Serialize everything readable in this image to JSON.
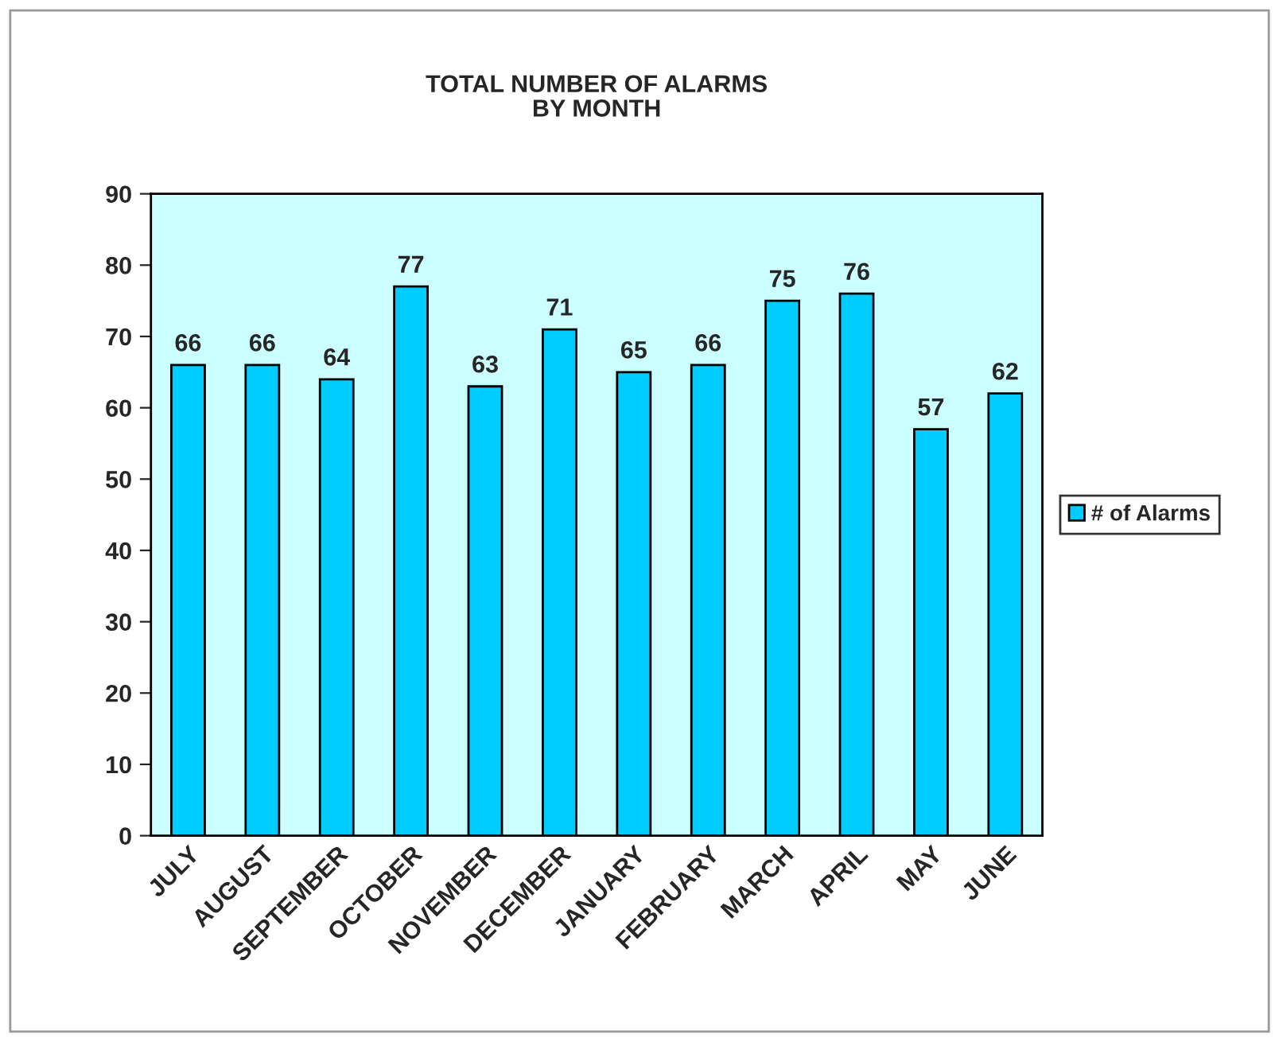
{
  "chart_data": {
    "type": "bar",
    "title": "TOTAL NUMBER OF ALARMS\nBY MONTH",
    "categories": [
      "JULY",
      "AUGUST",
      "SEPTEMBER",
      "OCTOBER",
      "NOVEMBER",
      "DECEMBER",
      "JANUARY",
      "FEBRUARY",
      "MARCH",
      "APRIL",
      "MAY",
      "JUNE"
    ],
    "series": [
      {
        "name": "# of Alarms",
        "color": "#00ccff",
        "values": [
          66,
          66,
          64,
          77,
          63,
          71,
          65,
          66,
          75,
          76,
          57,
          62
        ]
      }
    ],
    "ylim": [
      0,
      90
    ],
    "yticks": [
      0,
      10,
      20,
      30,
      40,
      50,
      60,
      70,
      80,
      90
    ],
    "data_labels": true,
    "grid": false,
    "legend": "right"
  }
}
